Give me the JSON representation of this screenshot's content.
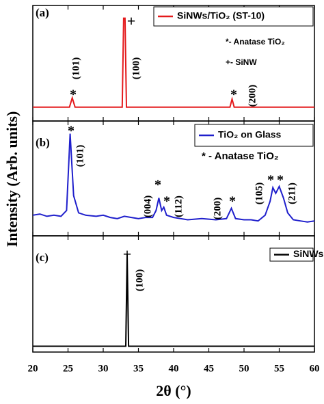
{
  "chart_data": [
    {
      "type": "line",
      "xlim": [
        20,
        60
      ],
      "xticks": [
        20,
        25,
        30,
        35,
        40,
        45,
        50,
        55,
        60
      ],
      "ylim": [
        0,
        100
      ],
      "legend": "upper right",
      "series": [
        {
          "name": "SiNWs/TiO₂ (ST-10)",
          "color": "#e41a1c",
          "x": [
            20,
            25.2,
            25.6,
            26.0,
            32.7,
            32.9,
            33.1,
            33.3,
            48.0,
            48.3,
            48.6,
            60
          ],
          "values": [
            12,
            12,
            20,
            12,
            12,
            89,
            89,
            12,
            12,
            19,
            12,
            12
          ]
        }
      ],
      "annotations": [
        "(a)",
        "*",
        "(101)",
        "+",
        "(100)",
        "*",
        "(200)",
        "*- Anatase TiO₂",
        "+- SiNW"
      ]
    },
    {
      "type": "line",
      "xlim": [
        20,
        60
      ],
      "xticks": [
        20,
        25,
        30,
        35,
        40,
        45,
        50,
        55,
        60
      ],
      "ylim": [
        0,
        100
      ],
      "legend": "upper right",
      "ylabel": "Intensity (Arb. units)",
      "series": [
        {
          "name": "TiO₂ on Glass",
          "color": "#1f1fcc",
          "x": [
            20,
            21,
            22,
            23,
            24,
            24.8,
            25.3,
            25.8,
            26.5,
            27.5,
            29,
            30,
            31,
            32,
            33,
            34,
            35,
            36,
            37,
            37.5,
            37.9,
            38.3,
            38.6,
            39,
            40,
            42,
            44,
            46,
            47.5,
            48.2,
            48.8,
            50,
            51,
            52,
            53,
            53.7,
            54.1,
            54.5,
            55.0,
            55.6,
            56.2,
            57,
            58,
            59,
            60
          ],
          "values": [
            18,
            19,
            17,
            18,
            17,
            22,
            89,
            35,
            20,
            18,
            17,
            18,
            16,
            15,
            17,
            16,
            15,
            16,
            16,
            22,
            33,
            22,
            25,
            18,
            16,
            14,
            15,
            14,
            15,
            24,
            15,
            14,
            14,
            13,
            18,
            30,
            42,
            37,
            43,
            33,
            20,
            14,
            13,
            12,
            13
          ]
        }
      ],
      "annotations": [
        "(b)",
        "*",
        "(101)",
        "(004)",
        "*",
        "*",
        "(112)",
        "(200)",
        "*",
        "(105)",
        "*",
        "*",
        "(211)",
        "* - Anatase TiO₂"
      ]
    },
    {
      "type": "line",
      "xlim": [
        20,
        60
      ],
      "xticks": [
        20,
        25,
        30,
        35,
        40,
        45,
        50,
        55,
        60
      ],
      "ylim": [
        0,
        100
      ],
      "legend": "upper right",
      "xlabel": "2θ (°)",
      "series": [
        {
          "name": "SiNWs",
          "color": "#000000",
          "x": [
            20,
            33.2,
            33.4,
            33.6,
            60
          ],
          "values": [
            5,
            5,
            84,
            5,
            5
          ]
        }
      ],
      "annotations": [
        "(c)",
        "+",
        "(100)"
      ]
    }
  ]
}
